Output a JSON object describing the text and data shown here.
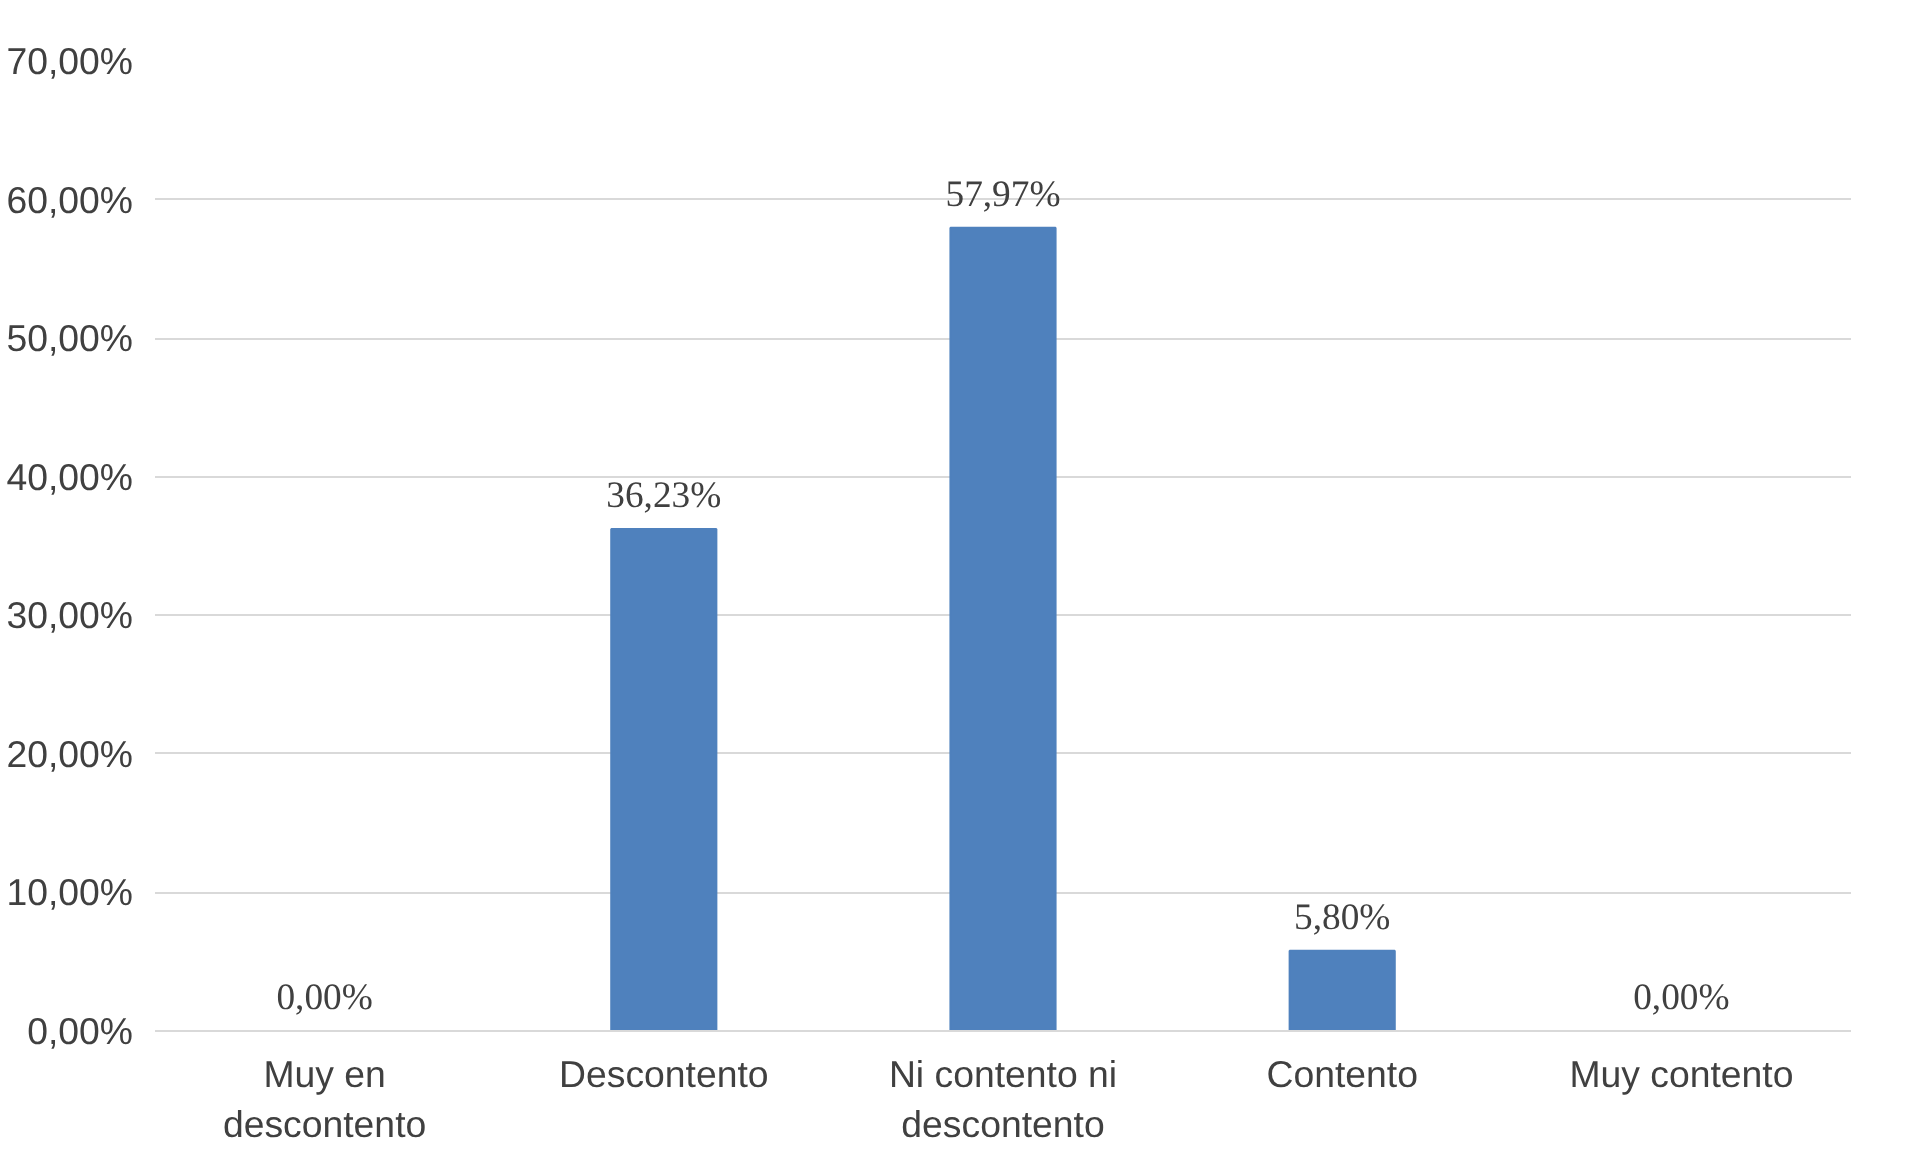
{
  "chart_data": {
    "type": "bar",
    "categories": [
      "Muy en descontento",
      "Descontento",
      "Ni contento ni descontento",
      "Contento",
      "Muy contento"
    ],
    "values": [
      0,
      36.23,
      57.97,
      5.8,
      0
    ],
    "value_labels": [
      "0,00%",
      "36,23%",
      "57,97%",
      "5,80%",
      "0,00%"
    ],
    "color": "#4f81bd",
    "ylim": [
      0,
      70
    ],
    "yticks": [
      {
        "value": 0,
        "label": "0,00%"
      },
      {
        "value": 10,
        "label": "10,00%"
      },
      {
        "value": 20,
        "label": "20,00%"
      },
      {
        "value": 30,
        "label": "30,00%"
      },
      {
        "value": 40,
        "label": "40,00%"
      },
      {
        "value": 50,
        "label": "50,00%"
      },
      {
        "value": 60,
        "label": "60,00%"
      },
      {
        "value": 70,
        "label": "70,00%"
      }
    ],
    "grid": "y"
  }
}
